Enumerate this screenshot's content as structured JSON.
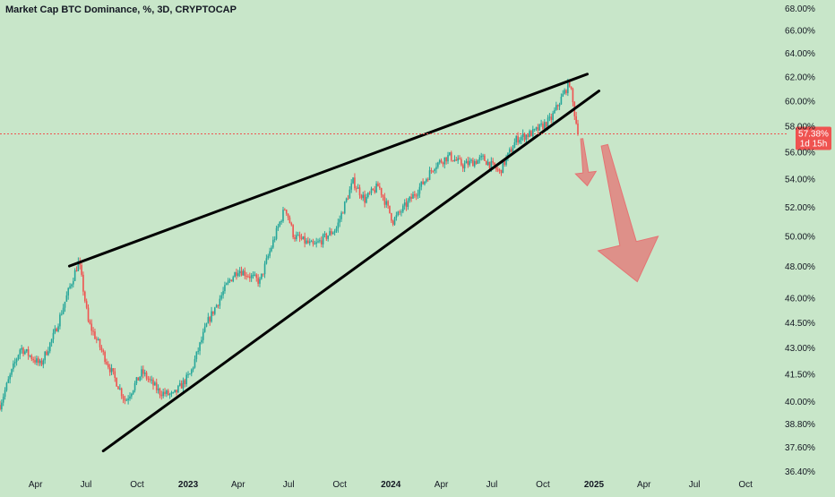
{
  "chart_data": {
    "type": "candlestick",
    "title": "Market Cap BTC Dominance, %, 3D, CRYPTOCAP",
    "x_ticks": [
      "Apr",
      "Jul",
      "Oct",
      "2023",
      "Apr",
      "Jul",
      "Oct",
      "2024",
      "Apr",
      "Jul",
      "Oct",
      "2025",
      "Apr",
      "Jul",
      "Oct"
    ],
    "y_ticks": [
      "68.00%",
      "66.00%",
      "64.00%",
      "62.00%",
      "60.00%",
      "58.00%",
      "56.00%",
      "54.00%",
      "52.00%",
      "50.00%",
      "48.00%",
      "46.00%",
      "44.50%",
      "43.00%",
      "41.50%",
      "40.00%",
      "38.80%",
      "37.60%",
      "36.40%"
    ],
    "y_scale": "log",
    "ylim": [
      36.4,
      68.0
    ],
    "xlim": [
      "2022-01-27",
      "2025-11-15"
    ],
    "current_price": {
      "value": 57.38,
      "label": "57.38%",
      "countdown": "1d 15h"
    },
    "colors": {
      "up": "#26a69a",
      "down": "#ef5350",
      "background": "#c8e6c9",
      "trendline": "#000000",
      "projection_arrow": "#e57373"
    },
    "anchors": [
      {
        "date": "2022-01-27",
        "close": 39.8
      },
      {
        "date": "2022-03-05",
        "close": 43.0
      },
      {
        "date": "2022-04-10",
        "close": 42.0
      },
      {
        "date": "2022-05-05",
        "close": 43.8
      },
      {
        "date": "2022-06-10",
        "close": 47.5
      },
      {
        "date": "2022-06-18",
        "close": 48.3
      },
      {
        "date": "2022-07-05",
        "close": 44.5
      },
      {
        "date": "2022-08-10",
        "close": 42.0
      },
      {
        "date": "2022-09-10",
        "close": 40.0
      },
      {
        "date": "2022-10-10",
        "close": 41.6
      },
      {
        "date": "2022-11-10",
        "close": 40.5
      },
      {
        "date": "2022-12-05",
        "close": 40.3
      },
      {
        "date": "2023-01-05",
        "close": 41.5
      },
      {
        "date": "2023-02-05",
        "close": 44.5
      },
      {
        "date": "2023-03-15",
        "close": 47.0
      },
      {
        "date": "2023-04-01",
        "close": 47.8
      },
      {
        "date": "2023-05-10",
        "close": 47.0
      },
      {
        "date": "2023-06-25",
        "close": 52.0
      },
      {
        "date": "2023-07-10",
        "close": 50.0
      },
      {
        "date": "2023-08-15",
        "close": 49.3
      },
      {
        "date": "2023-09-25",
        "close": 50.5
      },
      {
        "date": "2023-10-25",
        "close": 53.8
      },
      {
        "date": "2023-11-15",
        "close": 52.5
      },
      {
        "date": "2023-12-10",
        "close": 53.5
      },
      {
        "date": "2024-01-05",
        "close": 51.0
      },
      {
        "date": "2024-02-01",
        "close": 52.3
      },
      {
        "date": "2024-03-01",
        "close": 53.8
      },
      {
        "date": "2024-03-20",
        "close": 55.0
      },
      {
        "date": "2024-04-15",
        "close": 55.7
      },
      {
        "date": "2024-05-10",
        "close": 55.0
      },
      {
        "date": "2024-06-15",
        "close": 55.5
      },
      {
        "date": "2024-07-15",
        "close": 54.5
      },
      {
        "date": "2024-08-15",
        "close": 57.0
      },
      {
        "date": "2024-09-15",
        "close": 57.5
      },
      {
        "date": "2024-10-15",
        "close": 58.5
      },
      {
        "date": "2024-11-10",
        "close": 60.8
      },
      {
        "date": "2024-11-18",
        "close": 61.5
      },
      {
        "date": "2024-11-25",
        "close": 59.5
      },
      {
        "date": "2024-12-01",
        "close": 58.0
      },
      {
        "date": "2024-12-05",
        "close": 57.38
      }
    ],
    "annotations": [
      {
        "type": "trendline",
        "role": "upper-resistance",
        "from": {
          "date": "2022-06-01",
          "value": 48.0
        },
        "to": {
          "date": "2024-12-20",
          "value": 62.2
        }
      },
      {
        "type": "trendline",
        "role": "lower-support",
        "from": {
          "date": "2022-08-01",
          "value": 37.4
        },
        "to": {
          "date": "2025-01-10",
          "value": 60.8
        }
      },
      {
        "type": "arrow",
        "direction": "down",
        "from": {
          "date": "2024-12-10",
          "value": 57.0
        },
        "to": {
          "date": "2024-12-20",
          "value": 53.5
        }
      },
      {
        "type": "arrow",
        "direction": "down",
        "from": {
          "date": "2025-01-20",
          "value": 56.5
        },
        "to": {
          "date": "2025-03-20",
          "value": 47.0
        }
      }
    ]
  }
}
